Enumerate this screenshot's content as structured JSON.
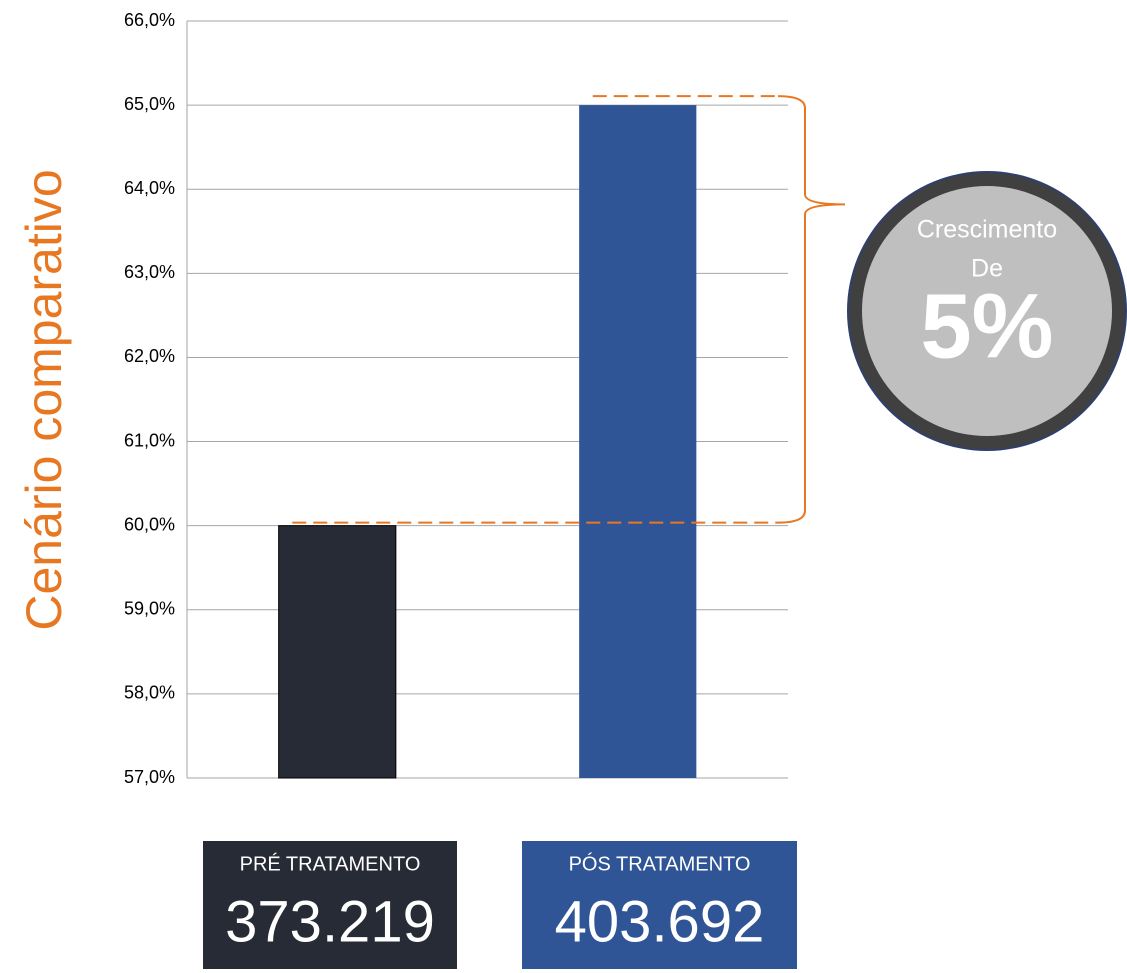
{
  "chart_data": {
    "type": "bar",
    "title": "Cenário comparativo",
    "categories": [
      "PRÉ TRATAMENTO",
      "PÓS TRATAMENTO"
    ],
    "series": [
      {
        "name": "PRÉ TRATAMENTO",
        "color": "#262b35",
        "values": [
          60,
          null
        ]
      },
      {
        "name": "PÓS TRATAMENTO",
        "color": "#2f5597",
        "values": [
          null,
          65
        ]
      }
    ],
    "ylim": [
      57,
      66
    ],
    "yticks": [
      {
        "value": 57,
        "label": "57,0%"
      },
      {
        "value": 58,
        "label": "58,0%"
      },
      {
        "value": 59,
        "label": "59,0%"
      },
      {
        "value": 60,
        "label": "60,0%"
      },
      {
        "value": 61,
        "label": "61,0%"
      },
      {
        "value": 62,
        "label": "62,0%"
      },
      {
        "value": 63,
        "label": "63,0%"
      },
      {
        "value": 64,
        "label": "64,0%"
      },
      {
        "value": 65,
        "label": "65,0%"
      },
      {
        "value": 66,
        "label": "66,0%"
      }
    ],
    "grid": true,
    "totals": [
      "373.219",
      "403.692"
    ],
    "annotation": {
      "lines": [
        "Crescimento",
        "De"
      ],
      "highlight": "5%"
    }
  }
}
